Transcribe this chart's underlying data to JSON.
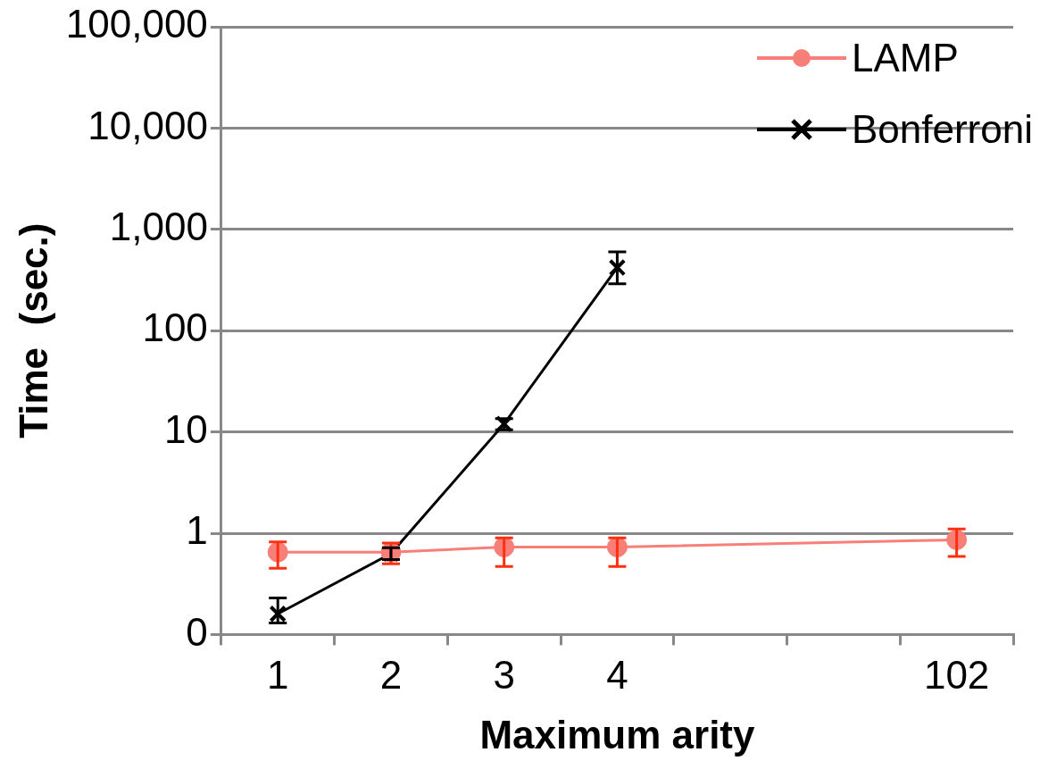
{
  "chart_data": {
    "type": "line",
    "xlabel": "Maximum arity",
    "ylabel": "Time  (sec.)",
    "categories": [
      "1",
      "2",
      "3",
      "4",
      null,
      null,
      "102"
    ],
    "series": [
      {
        "name": "LAMP",
        "color": "#f77f77",
        "marker": "circle",
        "values": [
          0.65,
          0.65,
          0.73,
          0.73,
          null,
          null,
          0.86
        ],
        "errors": [
          [
            0.45,
            0.82
          ],
          [
            0.5,
            0.8
          ],
          [
            0.47,
            0.9
          ],
          [
            0.47,
            0.9
          ],
          null,
          null,
          [
            0.59,
            1.1
          ]
        ]
      },
      {
        "name": "Bonferroni",
        "color": "#000000",
        "marker": "cross",
        "values": [
          0.16,
          0.63,
          12,
          420,
          null,
          null,
          null
        ],
        "errors": [
          [
            0.13,
            0.23
          ],
          [
            0.55,
            0.72
          ],
          [
            10.5,
            13.5
          ],
          [
            290,
            600
          ],
          null,
          null,
          null
        ]
      }
    ],
    "log": "y",
    "ylim": [
      0.1,
      100000
    ],
    "yticks": [
      {
        "value": 0.1,
        "label": "0"
      },
      1,
      10,
      100,
      {
        "value": 1000,
        "label": "1,000"
      },
      {
        "value": 10000,
        "label": "10,000"
      },
      {
        "value": 100000,
        "label": "100,000"
      }
    ],
    "grid": "y",
    "legend": "top right"
  }
}
